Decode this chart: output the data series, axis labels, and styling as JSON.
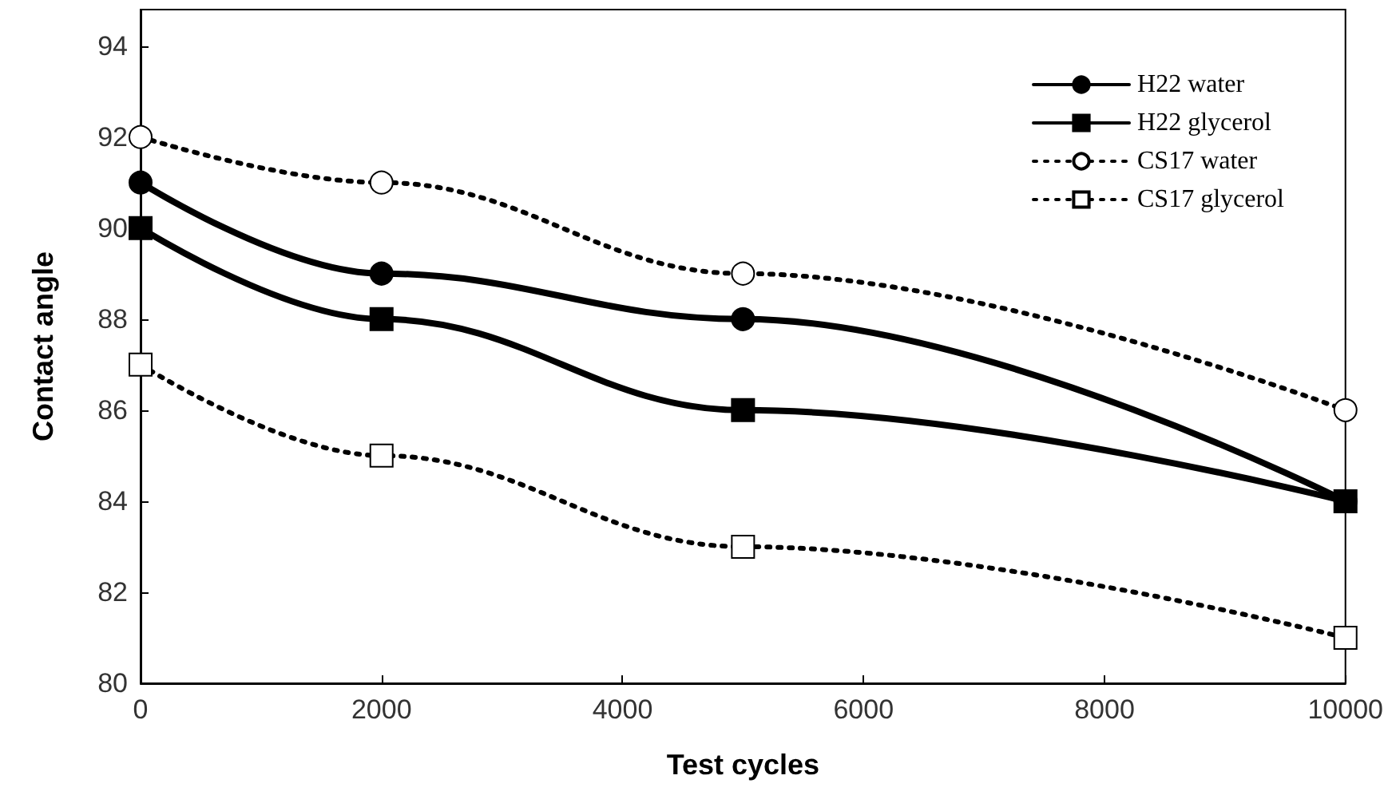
{
  "chart_data": {
    "type": "line",
    "xlabel": "Test cycles",
    "ylabel": "Contact angle",
    "x": [
      0,
      2000,
      5000,
      10000
    ],
    "series": [
      {
        "name": "H22 water",
        "color": "#000000",
        "marker": "circle",
        "line_style": "solid",
        "values": [
          91,
          89,
          88,
          84
        ]
      },
      {
        "name": "H22 glycerol",
        "color": "#000000",
        "marker": "square",
        "line_style": "solid",
        "values": [
          90,
          88,
          86,
          84
        ]
      },
      {
        "name": "CS17 water",
        "color": "#000000",
        "marker": "circle",
        "line_style": "dotted",
        "values": [
          92,
          91,
          89,
          86
        ]
      },
      {
        "name": "CS17 glycerol",
        "color": "#000000",
        "marker": "square",
        "line_style": "dotted",
        "values": [
          87,
          85,
          83,
          81
        ]
      }
    ],
    "xlim": [
      0,
      10000
    ],
    "xticks": [
      0,
      2000,
      4000,
      6000,
      8000,
      10000
    ],
    "ylim": [
      80,
      94.8
    ],
    "yticks": [
      80,
      82,
      84,
      86,
      88,
      90,
      92,
      94
    ],
    "grid": false,
    "legend": "top right"
  }
}
